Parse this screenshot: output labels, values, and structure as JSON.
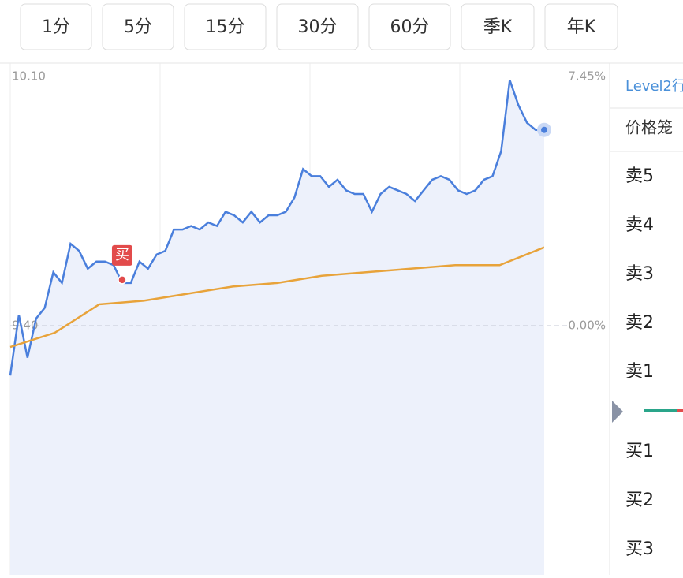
{
  "tabs": [
    "1分",
    "5分",
    "15分",
    "30分",
    "60分",
    "季K",
    "年K"
  ],
  "chart_data": {
    "type": "line",
    "ylim": [
      8.7,
      10.1
    ],
    "yticks": [
      {
        "value": 10.1,
        "label": "10.10"
      },
      {
        "value": 9.4,
        "label": "9.40"
      }
    ],
    "y2lim": [
      -7.45,
      7.45
    ],
    "y2ticks": [
      {
        "value": 7.45,
        "label": "7.45%"
      },
      {
        "value": 0,
        "label": "0.00%"
      }
    ],
    "grid": true,
    "series": [
      {
        "color": "#4a7fdc",
        "values": [
          9.26,
          9.43,
          9.31,
          9.42,
          9.45,
          9.55,
          9.52,
          9.63,
          9.61,
          9.56,
          9.58,
          9.58,
          9.57,
          9.52,
          9.52,
          9.58,
          9.56,
          9.6,
          9.61,
          9.67,
          9.67,
          9.68,
          9.67,
          9.69,
          9.68,
          9.72,
          9.71,
          9.69,
          9.72,
          9.69,
          9.71,
          9.71,
          9.72,
          9.76,
          9.84,
          9.82,
          9.82,
          9.79,
          9.81,
          9.78,
          9.77,
          9.77,
          9.72,
          9.77,
          9.79,
          9.78,
          9.77,
          9.75,
          9.78,
          9.81,
          9.82,
          9.81,
          9.78,
          9.77,
          9.78,
          9.81,
          9.82,
          9.89,
          10.09,
          10.02,
          9.97,
          9.95,
          9.95
        ]
      },
      {
        "color": "#e8a33a",
        "values": [
          9.34,
          9.38,
          9.46,
          9.47,
          9.49,
          9.51,
          9.52,
          9.54,
          9.55,
          9.56,
          9.57,
          9.57,
          9.62
        ]
      }
    ],
    "buy_marker": "买"
  },
  "order_book": {
    "header": "Level2行",
    "column": "价格笼",
    "rows": [
      "卖5",
      "卖4",
      "卖3",
      "卖2",
      "卖1",
      "买1",
      "买2",
      "买3"
    ]
  }
}
